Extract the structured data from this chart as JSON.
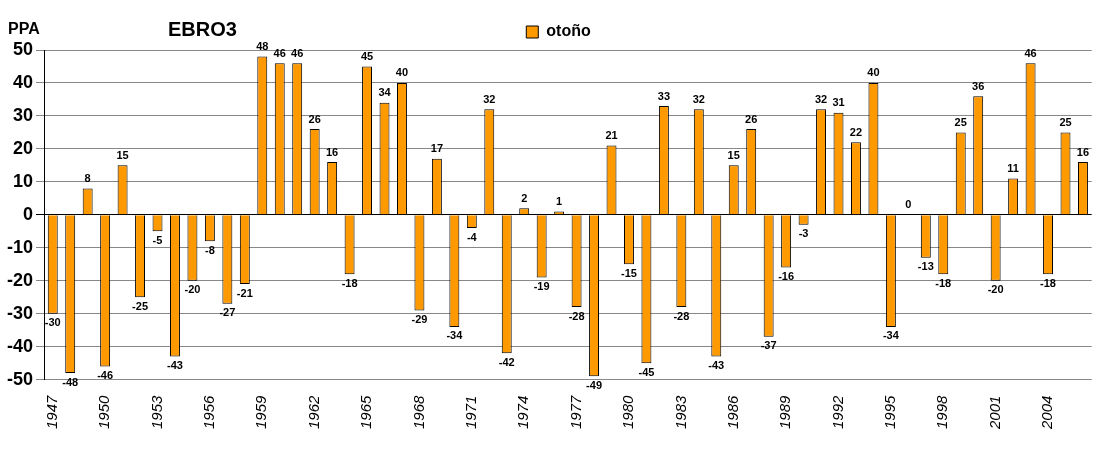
{
  "chart_data": {
    "type": "bar",
    "title": "EBRO3",
    "ylabel": "PPA",
    "categories": [
      "1947",
      null,
      null,
      "1950",
      null,
      null,
      "1953",
      null,
      null,
      "1956",
      null,
      null,
      "1959",
      null,
      null,
      "1962",
      null,
      null,
      "1965",
      null,
      null,
      "1968",
      null,
      null,
      "1971",
      null,
      null,
      "1974",
      null,
      null,
      "1977",
      null,
      null,
      "1980",
      null,
      null,
      "1983",
      null,
      null,
      "1986",
      null,
      null,
      "1989",
      null,
      null,
      "1992",
      null,
      null,
      "1995",
      null,
      null,
      "1998",
      null,
      null,
      "2001",
      null,
      null,
      "2004",
      null,
      null
    ],
    "series": [
      {
        "name": "otoño",
        "color": "#ff9900",
        "values": [
          -30,
          -48,
          8,
          -46,
          15,
          -25,
          -5,
          -43,
          -20,
          -8,
          -27,
          -21,
          48,
          46,
          46,
          26,
          16,
          -18,
          45,
          34,
          40,
          -29,
          17,
          -34,
          -4,
          32,
          -42,
          2,
          -19,
          1,
          -28,
          -49,
          21,
          -15,
          -45,
          33,
          -28,
          32,
          -43,
          15,
          26,
          -37,
          -16,
          -3,
          32,
          31,
          22,
          40,
          -34,
          0,
          -13,
          -18,
          25,
          36,
          -20,
          11,
          46,
          -18,
          25,
          16
        ]
      }
    ],
    "ylim": [
      -50,
      50
    ],
    "yticks": [
      -50,
      -40,
      -30,
      -20,
      -10,
      0,
      10,
      20,
      30,
      40,
      50
    ],
    "grid": "y",
    "legend": "top",
    "data_labels": true
  }
}
